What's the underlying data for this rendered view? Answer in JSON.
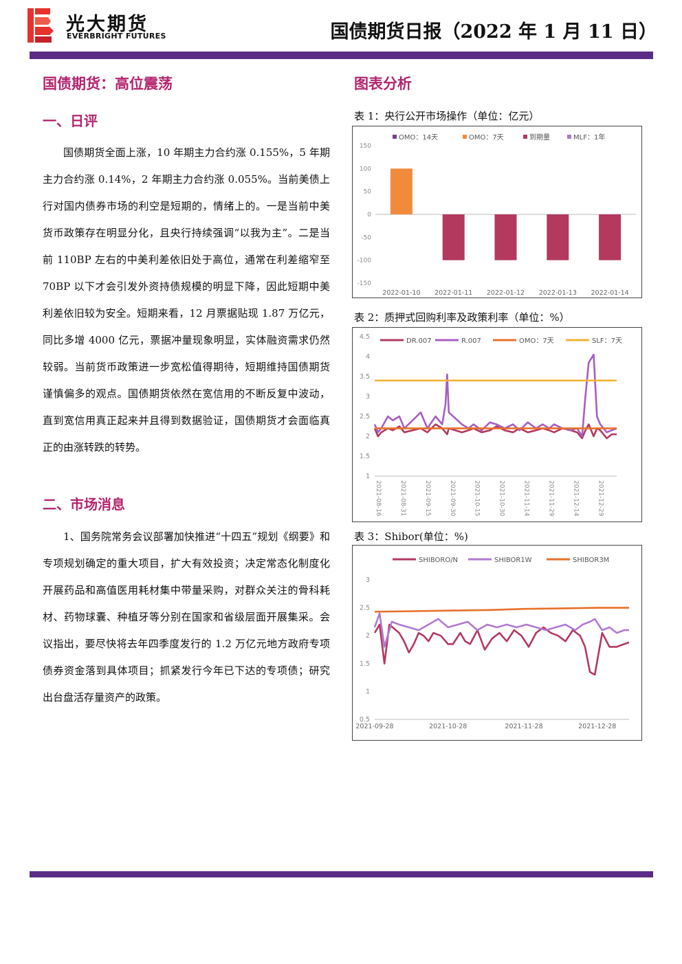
{
  "header": {
    "logo_cn": "光大期货",
    "logo_en": "EVERBRIGHT FUTURES",
    "report_title": "国债期货日报（2022 年 1 月 11 日）"
  },
  "left": {
    "main_title": "国债期货：高位震荡",
    "section1_title": "一、日评",
    "section1_text": "国债期货全面上涨，10 年期主力合约涨 0.155%，5 年期主力合约涨 0.14%，2 年期主力合约涨 0.055%。当前美债上行对国内债券市场的利空是短期的，情绪上的。一是当前中美货币政策存在明显分化，且央行持续强调“以我为主”。二是当前 110BP 左右的中美利差依旧处于高位，通常在利差缩窄至 70BP 以下才会引发外资持债规模的明显下降，因此短期中美利差依旧较为安全。短期来看，12 月票据贴现 1.87 万亿元，同比多增 4000 亿元，票据冲量现象明显，实体融资需求仍然较弱。当前货币政策进一步宽松值得期待，短期维持国债期货谨慎偏多的观点。国债期货依然在宽信用的不断反复中波动，直到宽信用真正起来并且得到数据验证，国债期货才会面临真正的由涨转跌的转势。",
    "section2_title": "二、市场消息",
    "section2_text": "1、国务院常务会议部署加快推进“十四五”规划《纲要》和专项规划确定的重大项目，扩大有效投资；决定常态化制度化开展药品和高值医用耗材集中带量采购，对群众关注的骨科耗材、药物球囊、种植牙等分别在国家和省级层面开展集采。会议指出，要尽快将去年四季度发行的 1.2 万亿元地方政府专项债券资金落到具体项目；抓紧发行今年已下达的专项债；研究出台盘活存量资产的政策。"
  },
  "right": {
    "section_title": "图表分析",
    "caption1": "表 1：央行公开市场操作（单位：亿元）",
    "caption2": "表 2：质押式回购利率及政策利率（单位：%）",
    "caption3": "表 3：Shibor(单位：%)"
  },
  "chart_data": [
    {
      "type": "bar",
      "categories": [
        "2022-01-10",
        "2022-01-11",
        "2022-01-12",
        "2022-01-13",
        "2022-01-14"
      ],
      "series": [
        {
          "name": "OMO：14天",
          "color": "#7a3f8c",
          "values": [
            0,
            0,
            0,
            0,
            0
          ]
        },
        {
          "name": "OMO：7天",
          "color": "#f28a3c",
          "values": [
            100,
            0,
            0,
            0,
            0
          ]
        },
        {
          "name": "到期量",
          "color": "#b3395f",
          "values": [
            0,
            -100,
            -100,
            -100,
            -100
          ]
        },
        {
          "name": "MLF：1年",
          "color": "#a97cc4",
          "values": [
            0,
            0,
            0,
            0,
            0
          ]
        }
      ],
      "ylim": [
        -150,
        150
      ],
      "yticks": [
        150,
        100,
        50,
        0,
        -50,
        -100,
        -150
      ],
      "legend": "top"
    },
    {
      "type": "line",
      "x_ticks": [
        "2021-08-16",
        "2021-08-31",
        "2021-09-15",
        "2021-09-30",
        "2021-10-15",
        "2021-10-30",
        "2021-11-14",
        "2021-11-29",
        "2021-12-14",
        "2021-12-29"
      ],
      "x_start": "2021-08-16",
      "x_end": "2022-01-10",
      "ylim": [
        1,
        4.5
      ],
      "yticks": [
        4.5,
        4,
        3.5,
        3,
        2.5,
        2,
        1.5,
        1
      ],
      "legend": "top",
      "series": [
        {
          "name": "DR.007",
          "color": "#b3395f",
          "x": [
            "2021-08-16",
            "2021-08-18",
            "2021-08-20",
            "2021-08-24",
            "2021-08-27",
            "2021-08-31",
            "2021-09-03",
            "2021-09-08",
            "2021-09-13",
            "2021-09-17",
            "2021-09-22",
            "2021-09-26",
            "2021-09-29",
            "2021-09-30",
            "2021-10-08",
            "2021-10-12",
            "2021-10-15",
            "2021-10-20",
            "2021-10-25",
            "2021-10-29",
            "2021-11-03",
            "2021-11-08",
            "2021-11-12",
            "2021-11-17",
            "2021-11-22",
            "2021-11-26",
            "2021-11-30",
            "2021-12-03",
            "2021-12-08",
            "2021-12-13",
            "2021-12-17",
            "2021-12-20",
            "2021-12-22",
            "2021-12-24",
            "2021-12-27",
            "2021-12-29",
            "2021-12-31",
            "2022-01-04",
            "2022-01-07",
            "2022-01-10"
          ],
          "y": [
            2.2,
            2.0,
            2.1,
            2.2,
            2.15,
            2.25,
            2.1,
            2.15,
            2.2,
            2.1,
            2.3,
            2.2,
            2.05,
            2.2,
            2.1,
            2.15,
            2.2,
            2.1,
            2.15,
            2.25,
            2.15,
            2.1,
            2.2,
            2.1,
            2.15,
            2.2,
            2.15,
            2.1,
            2.2,
            2.15,
            2.1,
            1.95,
            2.15,
            2.3,
            2.0,
            2.2,
            2.15,
            1.95,
            2.05,
            2.05
          ]
        },
        {
          "name": "R.007",
          "color": "#a45ec4",
          "x": [
            "2021-08-16",
            "2021-08-18",
            "2021-08-20",
            "2021-08-24",
            "2021-08-27",
            "2021-08-31",
            "2021-09-03",
            "2021-09-08",
            "2021-09-13",
            "2021-09-17",
            "2021-09-22",
            "2021-09-26",
            "2021-09-28",
            "2021-09-29",
            "2021-09-30",
            "2021-10-08",
            "2021-10-12",
            "2021-10-15",
            "2021-10-20",
            "2021-10-25",
            "2021-10-29",
            "2021-11-03",
            "2021-11-08",
            "2021-11-12",
            "2021-11-17",
            "2021-11-22",
            "2021-11-26",
            "2021-11-30",
            "2021-12-03",
            "2021-12-08",
            "2021-12-13",
            "2021-12-17",
            "2021-12-20",
            "2021-12-22",
            "2021-12-24",
            "2021-12-27",
            "2021-12-29",
            "2021-12-31",
            "2022-01-04",
            "2022-01-07",
            "2022-01-10"
          ],
          "y": [
            2.3,
            2.1,
            2.2,
            2.5,
            2.4,
            2.5,
            2.2,
            2.4,
            2.6,
            2.2,
            2.5,
            2.3,
            2.8,
            3.55,
            2.6,
            2.3,
            2.2,
            2.3,
            2.15,
            2.35,
            2.3,
            2.2,
            2.3,
            2.15,
            2.35,
            2.2,
            2.3,
            2.2,
            2.3,
            2.2,
            2.15,
            2.2,
            2.0,
            3.0,
            3.85,
            4.05,
            2.5,
            2.3,
            2.1,
            2.15,
            2.2
          ]
        },
        {
          "name": "OMO：7天",
          "color": "#e8702a",
          "x": [
            "2021-08-16",
            "2022-01-10"
          ],
          "y": [
            2.2,
            2.2
          ]
        },
        {
          "name": "SLF：7天",
          "color": "#f2b335",
          "x": [
            "2021-08-16",
            "2022-01-10"
          ],
          "y": [
            3.4,
            3.4
          ]
        }
      ]
    },
    {
      "type": "line",
      "x_ticks": [
        "2021-09-28",
        "2021-10-28",
        "2021-11-28",
        "2021-12-28"
      ],
      "x_start": "2021-09-28",
      "x_end": "2022-01-10",
      "ylim": [
        0.5,
        3
      ],
      "yticks": [
        3,
        2.5,
        2,
        1.5,
        1,
        0.5
      ],
      "legend": "top",
      "series": [
        {
          "name": "SHIBORO/N",
          "color": "#b3395f",
          "x": [
            "2021-09-28",
            "2021-09-30",
            "2021-10-01",
            "2021-10-02",
            "2021-10-04",
            "2021-10-08",
            "2021-10-10",
            "2021-10-12",
            "2021-10-14",
            "2021-10-16",
            "2021-10-18",
            "2021-10-20",
            "2021-10-22",
            "2021-10-25",
            "2021-10-28",
            "2021-10-30",
            "2021-11-02",
            "2021-11-04",
            "2021-11-06",
            "2021-11-09",
            "2021-11-12",
            "2021-11-15",
            "2021-11-18",
            "2021-11-21",
            "2021-11-24",
            "2021-11-27",
            "2021-11-30",
            "2021-12-03",
            "2021-12-06",
            "2021-12-09",
            "2021-12-12",
            "2021-12-15",
            "2021-12-18",
            "2021-12-21",
            "2021-12-23",
            "2021-12-25",
            "2021-12-27",
            "2021-12-30",
            "2022-01-02",
            "2022-01-05",
            "2022-01-08",
            "2022-01-10"
          ],
          "y": [
            2.05,
            2.2,
            1.85,
            1.5,
            2.2,
            2.05,
            1.9,
            1.7,
            1.85,
            2.05,
            2.0,
            1.9,
            2.05,
            2.0,
            1.85,
            1.85,
            2.05,
            1.9,
            1.85,
            2.1,
            1.75,
            1.95,
            2.05,
            1.9,
            2.1,
            2.0,
            1.8,
            2.05,
            2.15,
            2.05,
            2.0,
            1.9,
            2.1,
            2.0,
            1.8,
            1.35,
            1.3,
            2.05,
            1.8,
            1.8,
            1.85,
            1.88
          ]
        },
        {
          "name": "SHIBOR1W",
          "color": "#b07ad0",
          "x": [
            "2021-09-28",
            "2021-09-30",
            "2021-10-02",
            "2021-10-05",
            "2021-10-08",
            "2021-10-12",
            "2021-10-16",
            "2021-10-20",
            "2021-10-24",
            "2021-10-28",
            "2021-11-01",
            "2021-11-05",
            "2021-11-09",
            "2021-11-13",
            "2021-11-17",
            "2021-11-21",
            "2021-11-25",
            "2021-11-29",
            "2021-12-03",
            "2021-12-07",
            "2021-12-11",
            "2021-12-15",
            "2021-12-19",
            "2021-12-22",
            "2021-12-25",
            "2021-12-27",
            "2021-12-30",
            "2022-01-02",
            "2022-01-05",
            "2022-01-08",
            "2022-01-10"
          ],
          "y": [
            2.15,
            2.4,
            1.8,
            2.25,
            2.2,
            2.15,
            2.1,
            2.2,
            2.3,
            2.15,
            2.2,
            2.25,
            2.1,
            2.2,
            2.15,
            2.2,
            2.15,
            2.2,
            2.15,
            2.1,
            2.15,
            2.2,
            2.1,
            2.2,
            2.25,
            2.3,
            2.1,
            2.15,
            2.05,
            2.1,
            2.1
          ]
        },
        {
          "name": "SHIBOR3M",
          "color": "#e8702a",
          "x": [
            "2021-09-28",
            "2021-10-14",
            "2021-10-28",
            "2021-11-14",
            "2021-11-28",
            "2021-12-14",
            "2021-12-28",
            "2022-01-10"
          ],
          "y": [
            2.43,
            2.44,
            2.45,
            2.46,
            2.48,
            2.49,
            2.5,
            2.5
          ]
        }
      ]
    }
  ]
}
